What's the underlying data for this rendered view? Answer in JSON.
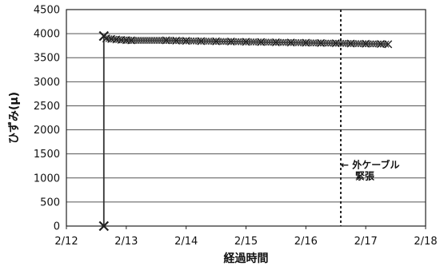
{
  "chart_data": {
    "type": "scatter",
    "title": "",
    "xlabel": "経過時間",
    "ylabel": "ひずみ(μ)",
    "x_ticks": [
      "2/12",
      "2/13",
      "2/14",
      "2/15",
      "2/16",
      "2/17",
      "2/18"
    ],
    "x_range_days": [
      12,
      18
    ],
    "ylim": [
      0,
      4500
    ],
    "y_ticks": [
      0,
      500,
      1000,
      1500,
      2000,
      2500,
      3000,
      3500,
      4000,
      4500
    ],
    "grid": "horizontal",
    "series": [
      {
        "marker": "x",
        "color": "#333333",
        "points": [
          {
            "x": "2/12 15:00",
            "y": 0
          },
          {
            "x": "2/12 15:00",
            "y": 3950
          },
          {
            "x": "2/12 16:00",
            "y": 3900
          },
          {
            "x": "2/12 18:00",
            "y": 3890
          },
          {
            "x": "2/12 20:00",
            "y": 3880
          },
          {
            "x": "2/12 22:00",
            "y": 3870
          },
          {
            "x": "2/13 00:00",
            "y": 3865
          },
          {
            "x": "2/13 02:00",
            "y": 3860
          },
          {
            "x": "2/13 16:00",
            "y": 3860
          },
          {
            "x": "2/13 20:00",
            "y": 3855
          },
          {
            "x": "2/14 00:00",
            "y": 3850
          },
          {
            "x": "2/14 06:00",
            "y": 3845
          },
          {
            "x": "2/14 12:00",
            "y": 3840
          },
          {
            "x": "2/14 18:00",
            "y": 3835
          },
          {
            "x": "2/15 00:00",
            "y": 3830
          },
          {
            "x": "2/15 06:00",
            "y": 3825
          },
          {
            "x": "2/15 12:00",
            "y": 3820
          },
          {
            "x": "2/15 18:00",
            "y": 3815
          },
          {
            "x": "2/16 00:00",
            "y": 3810
          },
          {
            "x": "2/16 06:00",
            "y": 3805
          },
          {
            "x": "2/16 12:00",
            "y": 3800
          },
          {
            "x": "2/16 18:00",
            "y": 3795
          },
          {
            "x": "2/17 00:00",
            "y": 3790
          },
          {
            "x": "2/17 06:00",
            "y": 3785
          },
          {
            "x": "2/17 09:00",
            "y": 3780
          }
        ]
      }
    ],
    "annotations": [
      {
        "type": "vline",
        "x": "2/16 14:00",
        "style": "dotted",
        "label_lines": [
          "← 外ケーブル",
          "緊張"
        ],
        "label_y": 1200
      }
    ]
  }
}
